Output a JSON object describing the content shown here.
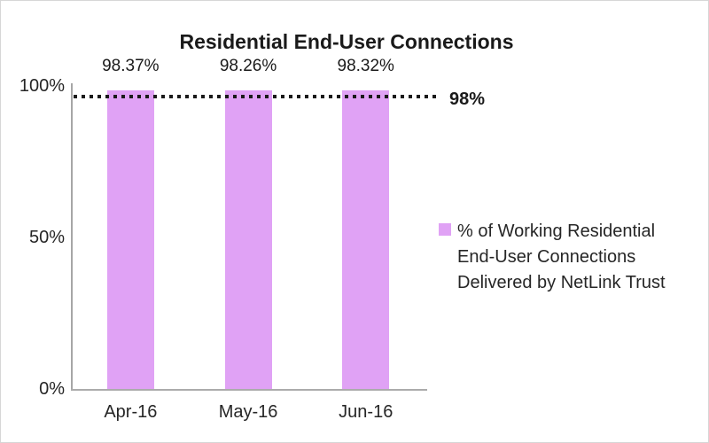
{
  "figure": {
    "background": "#ffffff",
    "border_color": "#d6d6d6"
  },
  "chart_data": {
    "type": "bar",
    "title": "Residential End-User Connections",
    "categories": [
      "Apr-16",
      "May-16",
      "Jun-16"
    ],
    "values": [
      98.37,
      98.26,
      98.32
    ],
    "data_labels": [
      "98.37%",
      "98.26%",
      "98.32%"
    ],
    "series": [
      {
        "name": "% of Working Residential End-User Connections Delivered by NetLink Trust",
        "values": [
          98.37,
          98.26,
          98.32
        ]
      }
    ],
    "xlabel": "",
    "ylabel": "",
    "ylim": [
      0,
      100
    ],
    "y_ticks": [
      {
        "value": 100,
        "label": "100%"
      },
      {
        "value": 50,
        "label": "50%"
      },
      {
        "value": 0,
        "label": "0%"
      }
    ],
    "grid": false,
    "legend_position": "right",
    "bar_color": "#e0a2f5",
    "axis_color": "#a6a6a6",
    "reference_line": {
      "value": 98,
      "label": "98%",
      "style": "dotted",
      "color": "#1a1a1a"
    }
  },
  "legend": {
    "swatch_color": "#e0a2f5",
    "lines": [
      "% of Working Residential",
      "End-User Connections",
      "Delivered by NetLink Trust"
    ]
  }
}
